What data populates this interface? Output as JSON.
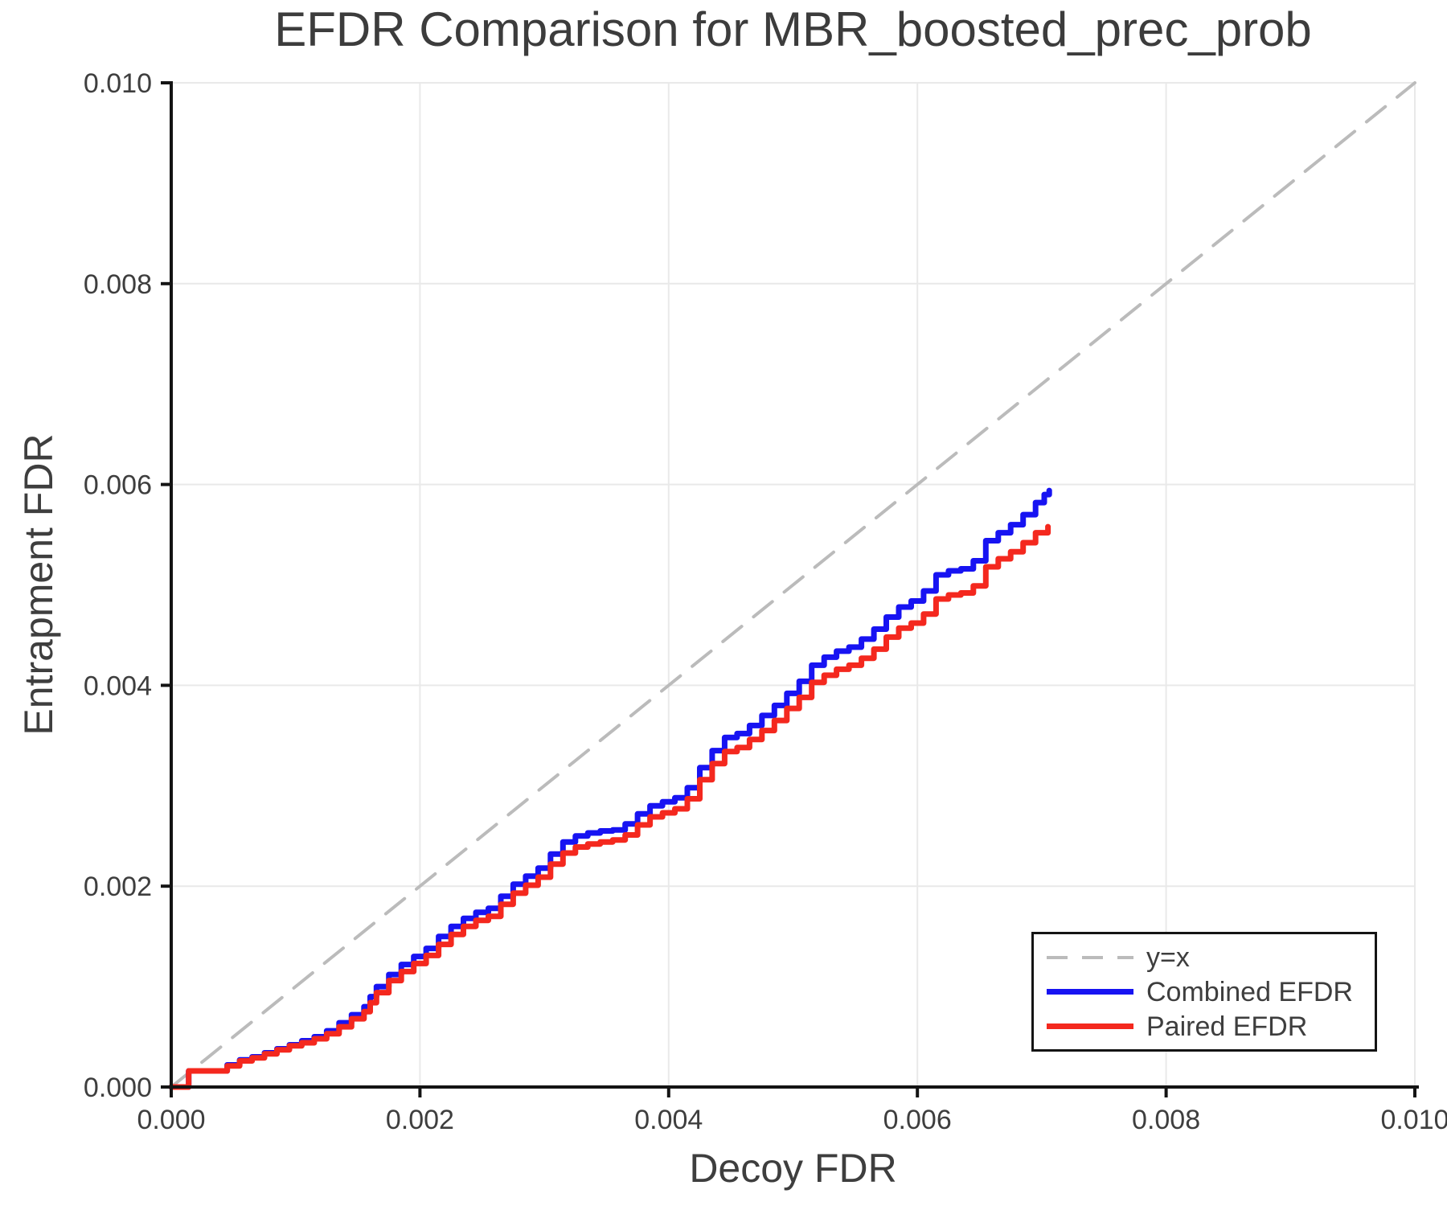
{
  "chart_data": {
    "type": "line",
    "title": "EFDR Comparison for MBR_boosted_prec_prob",
    "xlabel": "Decoy FDR",
    "ylabel": "Entrapment FDR",
    "xlim": [
      0.0,
      0.01
    ],
    "ylim": [
      0.0,
      0.01
    ],
    "grid": true,
    "x_ticks": [
      {
        "value": 0.0,
        "label": "0.000"
      },
      {
        "value": 0.002,
        "label": "0.002"
      },
      {
        "value": 0.004,
        "label": "0.004"
      },
      {
        "value": 0.006,
        "label": "0.006"
      },
      {
        "value": 0.008,
        "label": "0.008"
      },
      {
        "value": 0.01,
        "label": "0.010"
      }
    ],
    "y_ticks": [
      {
        "value": 0.0,
        "label": "0.000"
      },
      {
        "value": 0.002,
        "label": "0.002"
      },
      {
        "value": 0.004,
        "label": "0.004"
      },
      {
        "value": 0.006,
        "label": "0.006"
      },
      {
        "value": 0.008,
        "label": "0.008"
      },
      {
        "value": 0.01,
        "label": "0.010"
      }
    ],
    "colors": {
      "grid": "#e9e9e9",
      "spine": "#141414",
      "text": "#3e3e3e",
      "identity": "#bbbbbb",
      "combined": "#1713f2",
      "paired": "#f4281e"
    },
    "legend": {
      "position": "lower right",
      "entries": [
        {
          "label": "y=x",
          "color": "#bbbbbb",
          "style": "dashed"
        },
        {
          "label": "Combined EFDR",
          "color": "#1713f2",
          "style": "solid"
        },
        {
          "label": "Paired EFDR",
          "color": "#f4281e",
          "style": "solid"
        }
      ]
    },
    "series": [
      {
        "id": "identity-line",
        "name": "y=x",
        "color": "#bbbbbb",
        "width": 4,
        "dash": [
          30,
          19
        ],
        "step": false,
        "points": [
          [
            0.0,
            0.0
          ],
          [
            0.01,
            0.01
          ]
        ]
      },
      {
        "id": "combined-efdr-line",
        "name": "Combined EFDR",
        "color": "#1713f2",
        "width": 7,
        "dash": null,
        "step": true,
        "points": [
          [
            0.0,
            0.0
          ],
          [
            0.00013,
            0.0
          ],
          [
            0.00014,
            0.00016
          ],
          [
            0.00036,
            0.00016
          ],
          [
            0.00045,
            0.00022
          ],
          [
            0.00055,
            0.00027
          ],
          [
            0.00065,
            0.0003
          ],
          [
            0.00075,
            0.00034
          ],
          [
            0.00085,
            0.00038
          ],
          [
            0.00095,
            0.00042
          ],
          [
            0.00105,
            0.00046
          ],
          [
            0.00115,
            0.0005
          ],
          [
            0.00125,
            0.00056
          ],
          [
            0.00135,
            0.00064
          ],
          [
            0.00145,
            0.00072
          ],
          [
            0.00155,
            0.0008
          ],
          [
            0.0016,
            0.0009
          ],
          [
            0.00165,
            0.001
          ],
          [
            0.00175,
            0.00112
          ],
          [
            0.00185,
            0.00122
          ],
          [
            0.00195,
            0.0013
          ],
          [
            0.00205,
            0.00138
          ],
          [
            0.00215,
            0.0015
          ],
          [
            0.00225,
            0.0016
          ],
          [
            0.00235,
            0.00168
          ],
          [
            0.00245,
            0.00174
          ],
          [
            0.00255,
            0.00178
          ],
          [
            0.00265,
            0.0019
          ],
          [
            0.00275,
            0.00202
          ],
          [
            0.00285,
            0.0021
          ],
          [
            0.00295,
            0.00218
          ],
          [
            0.00305,
            0.00232
          ],
          [
            0.00315,
            0.00244
          ],
          [
            0.00325,
            0.0025
          ],
          [
            0.00335,
            0.00253
          ],
          [
            0.00345,
            0.00255
          ],
          [
            0.00355,
            0.00256
          ],
          [
            0.00365,
            0.00262
          ],
          [
            0.00375,
            0.00272
          ],
          [
            0.00385,
            0.0028
          ],
          [
            0.00395,
            0.00284
          ],
          [
            0.00405,
            0.00288
          ],
          [
            0.00415,
            0.00298
          ],
          [
            0.00425,
            0.00318
          ],
          [
            0.00435,
            0.00335
          ],
          [
            0.00445,
            0.00348
          ],
          [
            0.00455,
            0.00352
          ],
          [
            0.00465,
            0.0036
          ],
          [
            0.00475,
            0.0037
          ],
          [
            0.00485,
            0.0038
          ],
          [
            0.00495,
            0.00392
          ],
          [
            0.00505,
            0.00404
          ],
          [
            0.00515,
            0.0042
          ],
          [
            0.00525,
            0.00428
          ],
          [
            0.00535,
            0.00434
          ],
          [
            0.00545,
            0.00438
          ],
          [
            0.00555,
            0.00446
          ],
          [
            0.00565,
            0.00456
          ],
          [
            0.00575,
            0.00468
          ],
          [
            0.00585,
            0.00478
          ],
          [
            0.00595,
            0.00484
          ],
          [
            0.00605,
            0.00494
          ],
          [
            0.00615,
            0.0051
          ],
          [
            0.00625,
            0.00514
          ],
          [
            0.00635,
            0.00516
          ],
          [
            0.00645,
            0.00524
          ],
          [
            0.00655,
            0.00544
          ],
          [
            0.00665,
            0.00552
          ],
          [
            0.00675,
            0.0056
          ],
          [
            0.00685,
            0.0057
          ],
          [
            0.00695,
            0.00582
          ],
          [
            0.00702,
            0.0059
          ],
          [
            0.00706,
            0.00594
          ]
        ]
      },
      {
        "id": "paired-efdr-line",
        "name": "Paired EFDR",
        "color": "#f4281e",
        "width": 7,
        "dash": null,
        "step": true,
        "points": [
          [
            0.0,
            0.0
          ],
          [
            0.00013,
            0.0
          ],
          [
            0.00014,
            0.00016
          ],
          [
            0.00036,
            0.00016
          ],
          [
            0.00045,
            0.00021
          ],
          [
            0.00055,
            0.00026
          ],
          [
            0.00065,
            0.00029
          ],
          [
            0.00075,
            0.00033
          ],
          [
            0.00085,
            0.00037
          ],
          [
            0.00095,
            0.00041
          ],
          [
            0.00105,
            0.00044
          ],
          [
            0.00115,
            0.00048
          ],
          [
            0.00125,
            0.00053
          ],
          [
            0.00135,
            0.0006
          ],
          [
            0.00145,
            0.00068
          ],
          [
            0.00155,
            0.00075
          ],
          [
            0.0016,
            0.00084
          ],
          [
            0.00165,
            0.00094
          ],
          [
            0.00175,
            0.00106
          ],
          [
            0.00185,
            0.00115
          ],
          [
            0.00195,
            0.00123
          ],
          [
            0.00205,
            0.00131
          ],
          [
            0.00215,
            0.00142
          ],
          [
            0.00225,
            0.00152
          ],
          [
            0.00235,
            0.0016
          ],
          [
            0.00245,
            0.00166
          ],
          [
            0.00255,
            0.0017
          ],
          [
            0.00265,
            0.00182
          ],
          [
            0.00275,
            0.00193
          ],
          [
            0.00285,
            0.00201
          ],
          [
            0.00295,
            0.00209
          ],
          [
            0.00305,
            0.00222
          ],
          [
            0.00315,
            0.00233
          ],
          [
            0.00325,
            0.00239
          ],
          [
            0.00335,
            0.00242
          ],
          [
            0.00345,
            0.00244
          ],
          [
            0.00355,
            0.00246
          ],
          [
            0.00365,
            0.00251
          ],
          [
            0.00375,
            0.00261
          ],
          [
            0.00385,
            0.00269
          ],
          [
            0.00395,
            0.00273
          ],
          [
            0.00405,
            0.00277
          ],
          [
            0.00415,
            0.00287
          ],
          [
            0.00425,
            0.00306
          ],
          [
            0.00435,
            0.00322
          ],
          [
            0.00445,
            0.00334
          ],
          [
            0.00455,
            0.00338
          ],
          [
            0.00465,
            0.00346
          ],
          [
            0.00475,
            0.00355
          ],
          [
            0.00485,
            0.00365
          ],
          [
            0.00495,
            0.00377
          ],
          [
            0.00505,
            0.00388
          ],
          [
            0.00515,
            0.00403
          ],
          [
            0.00525,
            0.0041
          ],
          [
            0.00535,
            0.00416
          ],
          [
            0.00545,
            0.0042
          ],
          [
            0.00555,
            0.00427
          ],
          [
            0.00565,
            0.00436
          ],
          [
            0.00575,
            0.00448
          ],
          [
            0.00585,
            0.00457
          ],
          [
            0.00595,
            0.00462
          ],
          [
            0.00605,
            0.00471
          ],
          [
            0.00615,
            0.00486
          ],
          [
            0.00625,
            0.0049
          ],
          [
            0.00635,
            0.00492
          ],
          [
            0.00645,
            0.00499
          ],
          [
            0.00655,
            0.00518
          ],
          [
            0.00665,
            0.00526
          ],
          [
            0.00675,
            0.00533
          ],
          [
            0.00685,
            0.00542
          ],
          [
            0.00695,
            0.00552
          ],
          [
            0.00705,
            0.00558
          ]
        ]
      }
    ]
  }
}
